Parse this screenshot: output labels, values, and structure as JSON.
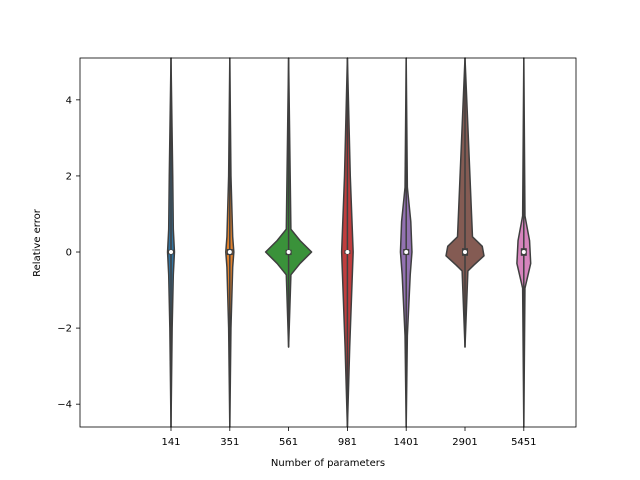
{
  "chart_data": {
    "type": "violin",
    "xlabel": "Number of parameters",
    "ylabel": "Relative error",
    "categories": [
      "141",
      "351",
      "561",
      "981",
      "1401",
      "2901",
      "5451"
    ],
    "ylim": [
      -4.6,
      5.1
    ],
    "yticks": [
      -4,
      -2,
      0,
      2,
      4
    ],
    "grid": false,
    "legend": "none",
    "violins": [
      {
        "category": "141",
        "color": "#3274a1",
        "min": -4.6,
        "max": 5.1,
        "median": 0.0,
        "q1": -0.06,
        "q3": 0.06,
        "profile": [
          [
            -4.6,
            0.0
          ],
          [
            -2.0,
            0.02
          ],
          [
            -0.6,
            0.04
          ],
          [
            0.0,
            0.06
          ],
          [
            0.6,
            0.04
          ],
          [
            2.0,
            0.03
          ],
          [
            5.1,
            0.0
          ]
        ]
      },
      {
        "category": "351",
        "color": "#e1812c",
        "min": -4.6,
        "max": 5.1,
        "median": 0.0,
        "q1": -0.08,
        "q3": 0.08,
        "profile": [
          [
            -4.6,
            0.0
          ],
          [
            -2.0,
            0.02
          ],
          [
            -0.4,
            0.05
          ],
          [
            0.0,
            0.07
          ],
          [
            0.4,
            0.05
          ],
          [
            2.0,
            0.02
          ],
          [
            5.1,
            0.0
          ]
        ]
      },
      {
        "category": "561",
        "color": "#3a923a",
        "min": -2.5,
        "max": 5.1,
        "median": 0.0,
        "q1": -0.08,
        "q3": 0.06,
        "profile": [
          [
            -2.5,
            0.0
          ],
          [
            -0.6,
            0.04
          ],
          [
            -0.3,
            0.2
          ],
          [
            0.0,
            0.4
          ],
          [
            0.3,
            0.2
          ],
          [
            0.6,
            0.04
          ],
          [
            5.1,
            0.0
          ]
        ]
      },
      {
        "category": "981",
        "color": "#c03d3e",
        "min": -4.6,
        "max": 5.1,
        "median": 0.0,
        "q1": -0.05,
        "q3": 0.05,
        "profile": [
          [
            -4.6,
            0.0
          ],
          [
            -2.5,
            0.04
          ],
          [
            0.0,
            0.1
          ],
          [
            2.0,
            0.05
          ],
          [
            5.1,
            0.0
          ]
        ]
      },
      {
        "category": "1401",
        "color": "#9372b2",
        "min": -4.6,
        "max": 5.1,
        "median": 0.0,
        "q1": -0.08,
        "q3": 0.08,
        "profile": [
          [
            -4.6,
            0.0
          ],
          [
            -2.2,
            0.02
          ],
          [
            -0.6,
            0.07
          ],
          [
            0.0,
            0.1
          ],
          [
            0.8,
            0.08
          ],
          [
            1.7,
            0.02
          ],
          [
            5.1,
            0.0
          ]
        ]
      },
      {
        "category": "2901",
        "color": "#845b53",
        "min": -2.5,
        "max": 5.1,
        "median": 0.0,
        "q1": -0.1,
        "q3": 0.1,
        "profile": [
          [
            -2.5,
            0.0
          ],
          [
            -0.5,
            0.05
          ],
          [
            -0.35,
            0.15
          ],
          [
            -0.1,
            0.33
          ],
          [
            0.15,
            0.3
          ],
          [
            0.4,
            0.13
          ],
          [
            5.1,
            0.0
          ]
        ]
      },
      {
        "category": "5451",
        "color": "#d684bd",
        "min": -4.6,
        "max": 5.1,
        "median": 0.0,
        "q1": -0.1,
        "q3": 0.1,
        "profile": [
          [
            -4.6,
            0.0
          ],
          [
            -0.95,
            0.02
          ],
          [
            -0.3,
            0.12
          ],
          [
            0.3,
            0.1
          ],
          [
            0.95,
            0.02
          ],
          [
            5.1,
            0.0
          ]
        ]
      }
    ]
  }
}
